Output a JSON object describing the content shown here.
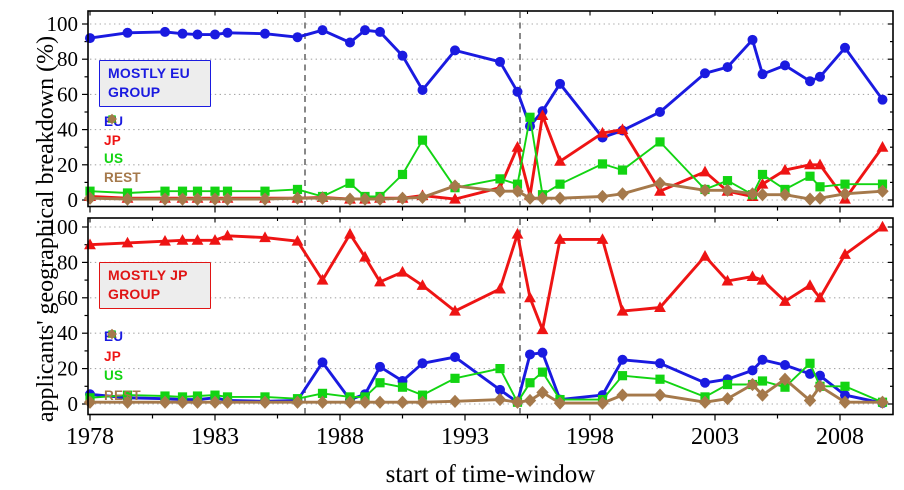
{
  "figure": {
    "y_axis_label": "applicants' geographical breakdown (%)",
    "x_axis_label": "start of time-window",
    "x_tick_labels": [
      1978,
      1983,
      1988,
      1993,
      1998,
      2003,
      2008
    ],
    "y_tick_labels": [
      0,
      20,
      40,
      60,
      80,
      100
    ],
    "grid": "dotted-horizontal",
    "background": "#ffffff"
  },
  "chart_data": [
    {
      "type": "line",
      "panel": "top",
      "group_label": "MOSTLY EU GROUP",
      "accent": "#1a1ae0",
      "ylim": [
        0,
        100
      ],
      "yticks": [
        0,
        20,
        40,
        60,
        80,
        100
      ],
      "dashed_vlines_x": [
        1986.6,
        1995.2
      ],
      "legend_position": "upper-left-inside",
      "x": [
        1978,
        1979.5,
        1981,
        1981.7,
        1982.3,
        1983,
        1983.5,
        1985,
        1986.3,
        1987.3,
        1988.4,
        1989,
        1989.6,
        1990.5,
        1991.3,
        1992.6,
        1994.4,
        1995.1,
        1995.6,
        1996.1,
        1996.8,
        1998.5,
        1999.3,
        2000.8,
        2002.6,
        2003.5,
        2004.5,
        2004.9,
        2005.8,
        2006.8,
        2007.2,
        2008.2,
        2009.7
      ],
      "series": [
        {
          "name": "EU",
          "marker": "circle",
          "color": "#1a1ae0",
          "values": [
            92,
            95,
            95.5,
            94.5,
            94,
            94,
            95,
            94.5,
            92.5,
            96.5,
            89.5,
            96.5,
            95.5,
            82,
            62.5,
            85,
            78.5,
            61.5,
            42,
            50.5,
            66,
            35.5,
            39.5,
            50,
            72,
            75.5,
            91,
            71.5,
            76.5,
            67.5,
            70,
            86.5,
            57
          ]
        },
        {
          "name": "JP",
          "marker": "triangle",
          "color": "#ee1414",
          "values": [
            2,
            1,
            1,
            1,
            1,
            1,
            1,
            1,
            1,
            1.5,
            0.5,
            0.5,
            1,
            1,
            2.5,
            0.5,
            7,
            30,
            2.5,
            48,
            22,
            38,
            40,
            5,
            16,
            5,
            2,
            9,
            17,
            20,
            20,
            0.5,
            30
          ]
        },
        {
          "name": "US",
          "marker": "square",
          "color": "#12d412",
          "values": [
            5,
            4,
            5,
            5,
            5,
            5,
            5,
            5,
            6,
            2,
            9.5,
            2,
            2,
            14.5,
            34,
            7,
            12,
            9,
            47,
            3,
            9,
            20.5,
            17,
            33,
            6,
            11,
            3,
            14.5,
            6,
            13.5,
            7.5,
            9,
            9
          ]
        },
        {
          "name": "REST",
          "marker": "diamond",
          "color": "#a5794b",
          "values": [
            1,
            0.5,
            0.5,
            0.5,
            0.5,
            0.5,
            0.5,
            0.5,
            1,
            1,
            0.5,
            0.5,
            0.5,
            1,
            1.5,
            8,
            5,
            5,
            1,
            1,
            1,
            2,
            3.5,
            9.5,
            5.5,
            5.5,
            3.5,
            3,
            3,
            0.5,
            1,
            3.5,
            5
          ]
        }
      ]
    },
    {
      "type": "line",
      "panel": "bottom",
      "group_label": "MOSTLY JP GROUP",
      "accent": "#e01414",
      "ylim": [
        0,
        100
      ],
      "yticks": [
        0,
        20,
        40,
        60,
        80,
        100
      ],
      "dashed_vlines_x": [
        1986.6,
        1995.2
      ],
      "legend_position": "middle-left-inside",
      "x": [
        1978,
        1979.5,
        1981,
        1981.7,
        1982.3,
        1983,
        1983.5,
        1985,
        1986.3,
        1987.3,
        1988.4,
        1989,
        1989.6,
        1990.5,
        1991.3,
        1992.6,
        1994.4,
        1995.1,
        1995.6,
        1996.1,
        1996.8,
        1998.5,
        1999.3,
        2000.8,
        2002.6,
        2003.5,
        2004.5,
        2004.9,
        2005.8,
        2006.8,
        2007.2,
        2008.2,
        2009.7
      ],
      "series": [
        {
          "name": "EU",
          "marker": "circle",
          "color": "#1a1ae0",
          "values": [
            5.5,
            3.5,
            3,
            2.5,
            2.5,
            3.5,
            2,
            1.5,
            2,
            23.5,
            2.5,
            5.5,
            21,
            13,
            23,
            26.5,
            8,
            1,
            28,
            29,
            2.5,
            5,
            25,
            23,
            12,
            14,
            19,
            25,
            22,
            17,
            16,
            5,
            0.5
          ]
        },
        {
          "name": "JP",
          "marker": "triangle",
          "color": "#ee1414",
          "values": [
            90,
            91,
            92,
            92.5,
            92.5,
            92.5,
            95,
            94,
            92,
            70,
            96,
            83,
            69,
            74.5,
            67,
            52.5,
            65,
            96,
            60,
            42,
            93,
            93,
            52.5,
            54.5,
            83.5,
            69.5,
            72,
            70,
            58,
            67,
            60,
            84.5,
            100
          ]
        },
        {
          "name": "US",
          "marker": "square",
          "color": "#12d412",
          "values": [
            3.5,
            5,
            4.5,
            4,
            4.5,
            5,
            4,
            4,
            3,
            6,
            4,
            4,
            12,
            9.5,
            5,
            14.5,
            20,
            1,
            12,
            18,
            2.5,
            2.5,
            16,
            14,
            4,
            11,
            11,
            13,
            9.5,
            23,
            10,
            10,
            1
          ]
        },
        {
          "name": "REST",
          "marker": "diamond",
          "color": "#a5794b",
          "values": [
            1,
            1,
            1,
            1,
            1,
            1,
            1,
            1,
            1,
            1,
            1,
            1,
            1,
            1,
            1,
            1.5,
            2.5,
            1,
            2,
            6.5,
            0.5,
            0.5,
            5,
            5,
            1,
            3,
            11,
            5,
            14,
            2,
            10,
            1,
            1
          ]
        }
      ]
    }
  ]
}
